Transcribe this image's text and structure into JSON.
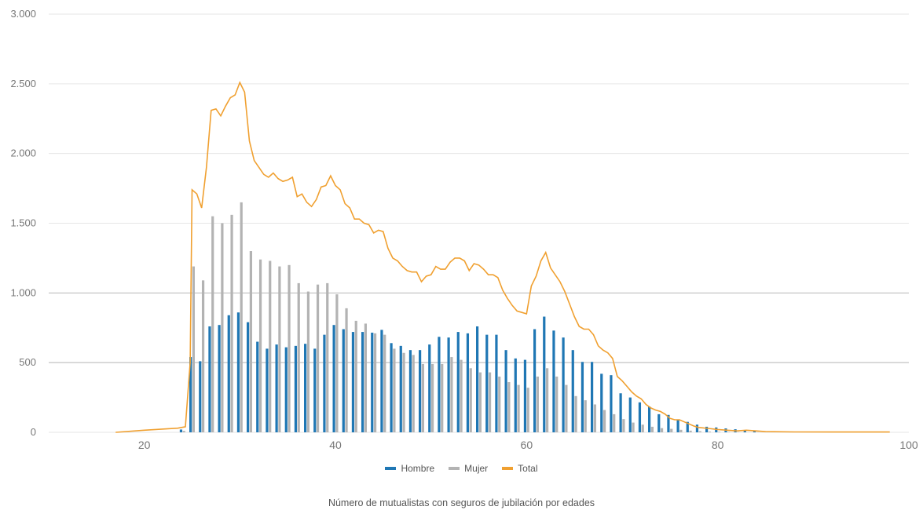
{
  "chart_data": {
    "type": "bar",
    "xlabel": "",
    "ylabel": "",
    "caption": "Número de mutualistas con seguros de jubilación por edades",
    "xlim": [
      10,
      100
    ],
    "ylim": [
      0,
      3000
    ],
    "x_ticks": [
      {
        "value": 20,
        "label": "20"
      },
      {
        "value": 40,
        "label": "40"
      },
      {
        "value": 60,
        "label": "60"
      },
      {
        "value": 80,
        "label": "80"
      },
      {
        "value": 100,
        "label": "100"
      }
    ],
    "y_ticks": [
      {
        "value": 0,
        "label": "0"
      },
      {
        "value": 500,
        "label": "500"
      },
      {
        "value": 1000,
        "label": "1.000"
      },
      {
        "value": 1500,
        "label": "1.500"
      },
      {
        "value": 2000,
        "label": "2.000"
      },
      {
        "value": 2500,
        "label": "2.500"
      },
      {
        "value": 3000,
        "label": "3.000"
      }
    ],
    "colors": {
      "hombre": "#1f77b4",
      "mujer": "#b3b3b3",
      "total": "#f0a030",
      "grid_light": "#e6e6e6",
      "grid_dark": "#b5b5b5"
    },
    "legend": [
      {
        "name": "Hombre",
        "color": "#1f77b4"
      },
      {
        "name": "Mujer",
        "color": "#b3b3b3"
      },
      {
        "name": "Total",
        "color": "#f0a030"
      }
    ],
    "bars": {
      "x": [
        24,
        25,
        26,
        27,
        28,
        29,
        30,
        31,
        32,
        33,
        34,
        35,
        36,
        37,
        38,
        39,
        40,
        41,
        42,
        43,
        44,
        45,
        46,
        47,
        48,
        49,
        50,
        51,
        52,
        53,
        54,
        55,
        56,
        57,
        58,
        59,
        60,
        61,
        62,
        63,
        64,
        65,
        66,
        67,
        68,
        69,
        70,
        71,
        72,
        73,
        74,
        75,
        76,
        77,
        78,
        79,
        80,
        81,
        82,
        83,
        84
      ],
      "series": [
        {
          "name": "Hombre",
          "values": [
            20,
            540,
            510,
            760,
            770,
            840,
            860,
            790,
            650,
            600,
            630,
            610,
            620,
            635,
            600,
            700,
            770,
            740,
            720,
            720,
            715,
            735,
            640,
            620,
            590,
            590,
            630,
            685,
            680,
            720,
            710,
            760,
            700,
            700,
            590,
            530,
            520,
            740,
            830,
            730,
            680,
            590,
            505,
            505,
            420,
            410,
            280,
            250,
            215,
            185,
            130,
            125,
            90,
            75,
            55,
            40,
            35,
            28,
            22,
            15,
            12
          ]
        },
        {
          "name": "Mujer",
          "values": [
            10,
            1190,
            1090,
            1550,
            1500,
            1560,
            1650,
            1300,
            1240,
            1230,
            1190,
            1200,
            1070,
            1010,
            1060,
            1070,
            990,
            890,
            800,
            780,
            710,
            700,
            600,
            570,
            555,
            490,
            490,
            490,
            540,
            520,
            460,
            430,
            430,
            400,
            360,
            340,
            320,
            400,
            460,
            400,
            340,
            260,
            230,
            200,
            160,
            130,
            95,
            70,
            55,
            40,
            30,
            25,
            18,
            12,
            8,
            5,
            4,
            3,
            2,
            1,
            1
          ]
        }
      ]
    },
    "total": {
      "name": "Total",
      "points": [
        [
          17,
          0
        ],
        [
          20,
          15
        ],
        [
          23.5,
          30
        ],
        [
          24.3,
          40
        ],
        [
          24.8,
          500
        ],
        [
          25,
          1740
        ],
        [
          25.5,
          1710
        ],
        [
          26,
          1610
        ],
        [
          26.5,
          1900
        ],
        [
          27,
          2310
        ],
        [
          27.5,
          2320
        ],
        [
          28,
          2270
        ],
        [
          28.5,
          2340
        ],
        [
          29,
          2400
        ],
        [
          29.5,
          2420
        ],
        [
          30,
          2510
        ],
        [
          30.5,
          2440
        ],
        [
          31,
          2090
        ],
        [
          31.5,
          1950
        ],
        [
          32,
          1900
        ],
        [
          32.5,
          1850
        ],
        [
          33,
          1830
        ],
        [
          33.5,
          1860
        ],
        [
          34,
          1820
        ],
        [
          34.5,
          1800
        ],
        [
          35,
          1810
        ],
        [
          35.5,
          1830
        ],
        [
          36,
          1690
        ],
        [
          36.5,
          1710
        ],
        [
          37,
          1650
        ],
        [
          37.5,
          1620
        ],
        [
          38,
          1670
        ],
        [
          38.5,
          1760
        ],
        [
          39,
          1770
        ],
        [
          39.5,
          1840
        ],
        [
          40,
          1770
        ],
        [
          40.5,
          1740
        ],
        [
          41,
          1640
        ],
        [
          41.5,
          1610
        ],
        [
          42,
          1530
        ],
        [
          42.5,
          1530
        ],
        [
          43,
          1500
        ],
        [
          43.5,
          1490
        ],
        [
          44,
          1430
        ],
        [
          44.5,
          1450
        ],
        [
          45,
          1440
        ],
        [
          45.5,
          1320
        ],
        [
          46,
          1250
        ],
        [
          46.5,
          1230
        ],
        [
          47,
          1190
        ],
        [
          47.5,
          1160
        ],
        [
          48,
          1150
        ],
        [
          48.5,
          1150
        ],
        [
          49,
          1080
        ],
        [
          49.5,
          1120
        ],
        [
          50,
          1130
        ],
        [
          50.5,
          1190
        ],
        [
          51,
          1170
        ],
        [
          51.5,
          1170
        ],
        [
          52,
          1220
        ],
        [
          52.5,
          1250
        ],
        [
          53,
          1250
        ],
        [
          53.5,
          1230
        ],
        [
          54,
          1160
        ],
        [
          54.5,
          1210
        ],
        [
          55,
          1200
        ],
        [
          55.5,
          1170
        ],
        [
          56,
          1130
        ],
        [
          56.5,
          1130
        ],
        [
          57,
          1110
        ],
        [
          57.5,
          1020
        ],
        [
          58,
          960
        ],
        [
          58.5,
          910
        ],
        [
          59,
          870
        ],
        [
          59.5,
          860
        ],
        [
          60,
          850
        ],
        [
          60.5,
          1050
        ],
        [
          61,
          1120
        ],
        [
          61.5,
          1230
        ],
        [
          62,
          1290
        ],
        [
          62.5,
          1180
        ],
        [
          63,
          1130
        ],
        [
          63.5,
          1080
        ],
        [
          64,
          1010
        ],
        [
          64.5,
          920
        ],
        [
          65,
          830
        ],
        [
          65.5,
          760
        ],
        [
          66,
          740
        ],
        [
          66.5,
          740
        ],
        [
          67,
          700
        ],
        [
          67.5,
          620
        ],
        [
          68,
          590
        ],
        [
          68.5,
          570
        ],
        [
          69,
          530
        ],
        [
          69.5,
          400
        ],
        [
          70,
          370
        ],
        [
          70.5,
          330
        ],
        [
          71,
          290
        ],
        [
          71.5,
          260
        ],
        [
          72,
          240
        ],
        [
          72.5,
          200
        ],
        [
          73,
          175
        ],
        [
          73.5,
          160
        ],
        [
          74,
          150
        ],
        [
          74.5,
          130
        ],
        [
          75,
          100
        ],
        [
          75.5,
          90
        ],
        [
          76,
          90
        ],
        [
          76.5,
          75
        ],
        [
          77,
          60
        ],
        [
          77.5,
          45
        ],
        [
          78,
          35
        ],
        [
          79,
          28
        ],
        [
          80,
          20
        ],
        [
          81,
          15
        ],
        [
          82,
          10
        ],
        [
          83,
          15
        ],
        [
          84,
          10
        ],
        [
          85,
          5
        ],
        [
          88,
          3
        ],
        [
          92,
          2
        ],
        [
          98,
          2
        ]
      ]
    }
  }
}
